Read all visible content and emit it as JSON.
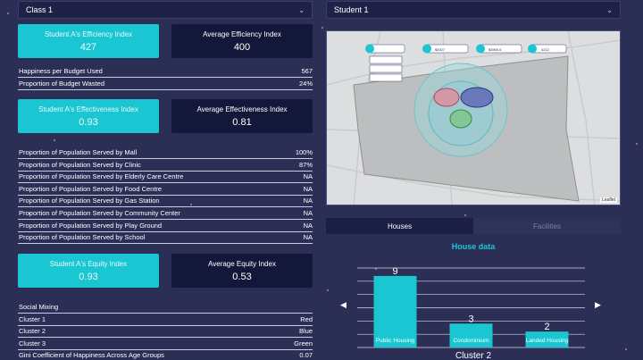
{
  "class_select": {
    "value": "Class 1"
  },
  "student_select": {
    "value": "Student 1"
  },
  "efficiency": {
    "student_label": "Student A's Efficiency Index",
    "student_value": "427",
    "avg_label": "Average Efficiency Index",
    "avg_value": "400"
  },
  "efficiency_rows": [
    {
      "label": "Happiness per Budget Used",
      "value": "567"
    },
    {
      "label": "Proportion of Budget Wasted",
      "value": "24%"
    }
  ],
  "effectiveness": {
    "student_label": "Student A's Effectiveness Index",
    "student_value": "0.93",
    "avg_label": "Average Effectiveness Index",
    "avg_value": "0.81"
  },
  "population_rows": [
    {
      "label": "Proportion of Population Served by Mall",
      "value": "100%"
    },
    {
      "label": "Proportion of Population Served by Clinic",
      "value": "87%"
    },
    {
      "label": "Proportion of Population Served by Elderly Care Centre",
      "value": "NA"
    },
    {
      "label": "Proportion of Population Served by Food Centre",
      "value": "NA"
    },
    {
      "label": "Proportion of Population Served by Gas Station",
      "value": "NA"
    },
    {
      "label": "Proportion of Population Served by Community Center",
      "value": "NA"
    },
    {
      "label": "Proportion of Population Served by Play Ground",
      "value": "NA"
    },
    {
      "label": "Proportion of Population Served by School",
      "value": "NA"
    }
  ],
  "equity": {
    "student_label": "Student A's Equity Index",
    "student_value": "0.93",
    "avg_label": "Average Equity Index",
    "avg_value": "0.53"
  },
  "social_rows": [
    {
      "label": "Social Mixing",
      "value": ""
    },
    {
      "label": "Cluster 1",
      "value": "Red"
    },
    {
      "label": "Cluster 2",
      "value": "Blue"
    },
    {
      "label": "Cluster 3",
      "value": "Green"
    },
    {
      "label": "Gini Coefficient of Happiness Across Age Groups",
      "value": "0.07"
    }
  ],
  "map": {
    "attribution": "Leaflet",
    "marker_labels": [
      "$4927",
      "$3900.6",
      "4212"
    ]
  },
  "tabs": {
    "houses": "Houses",
    "facilities": "Facilities"
  },
  "chart_title": "House data",
  "chart_data": {
    "type": "bar",
    "categories": [
      "Public Housing",
      "Condominium",
      "Landed Housing"
    ],
    "values": [
      9,
      3,
      2
    ],
    "xlabel": "Cluster 2",
    "color": "#1ac6d1"
  },
  "nav": {
    "prev": "◀",
    "next": "▶"
  }
}
